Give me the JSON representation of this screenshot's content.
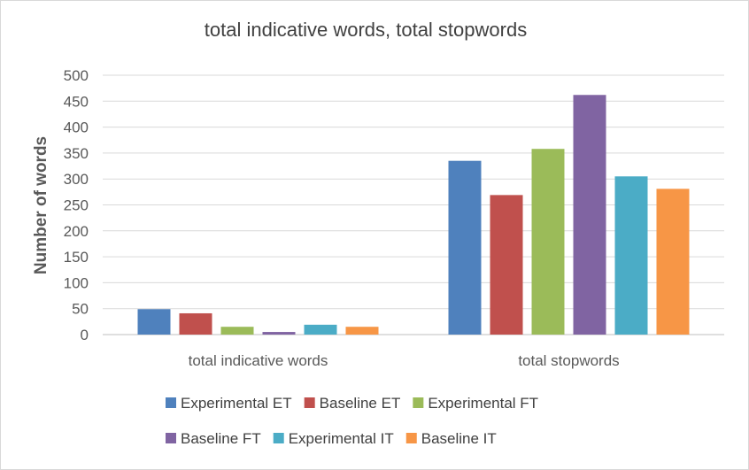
{
  "chart_data": {
    "type": "bar",
    "title": "total indicative words, total stopwords",
    "xlabel": "",
    "ylabel": "Number of words",
    "categories": [
      "total indicative words",
      "total stopwords"
    ],
    "ylim": [
      0,
      500
    ],
    "yticks": [
      0,
      50,
      100,
      150,
      200,
      250,
      300,
      350,
      400,
      450,
      500
    ],
    "grid": true,
    "legend_position": "bottom",
    "series": [
      {
        "name": "Experimental ET",
        "color": "#4f81bd",
        "values": [
          49,
          335
        ]
      },
      {
        "name": "Baseline ET",
        "color": "#c0504d",
        "values": [
          41,
          269
        ]
      },
      {
        "name": "Experimental FT",
        "color": "#9bbb59",
        "values": [
          15,
          358
        ]
      },
      {
        "name": "Baseline FT",
        "color": "#8064a2",
        "values": [
          5,
          462
        ]
      },
      {
        "name": "Experimental IT",
        "color": "#4bacc6",
        "values": [
          19,
          305
        ]
      },
      {
        "name": "Baseline IT",
        "color": "#f79646",
        "values": [
          15,
          281
        ]
      }
    ]
  }
}
